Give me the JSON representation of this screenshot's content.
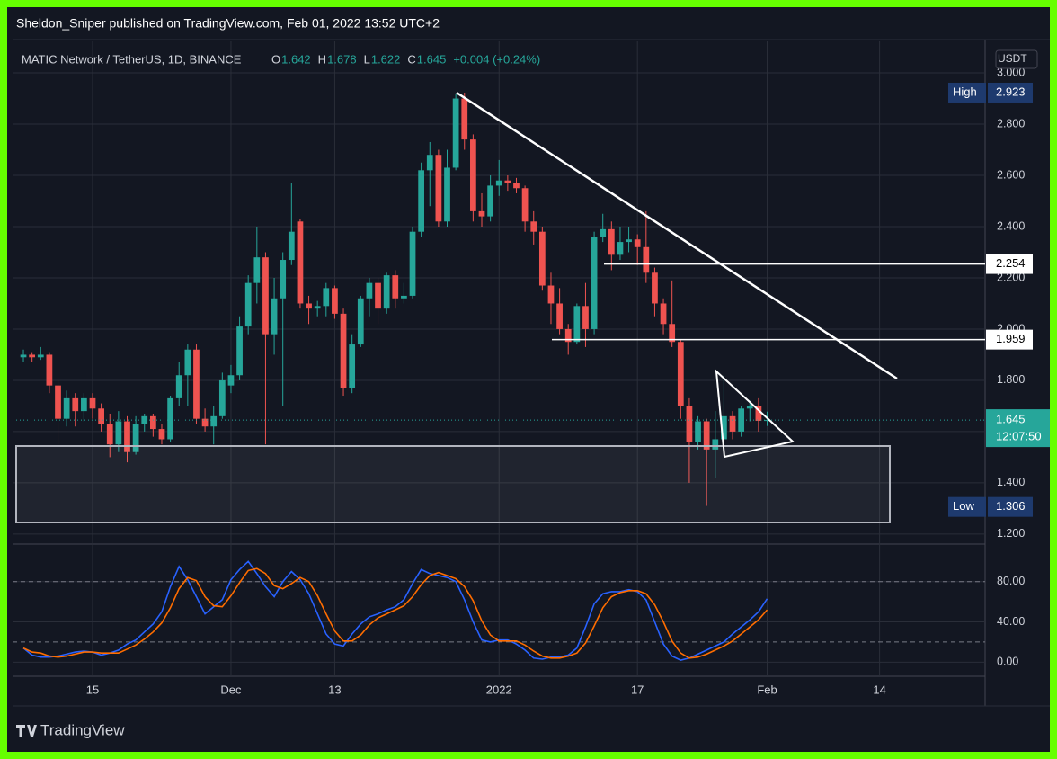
{
  "header": {
    "publisher": "Sheldon_Sniper published on TradingView.com, Feb 01, 2022 13:52 UTC+2"
  },
  "chart_data": {
    "type": "candlestick",
    "symbol": "MATIC Network / TetherUS, 1D, BINANCE",
    "legend": [
      {
        "label": "O",
        "value": 1.642
      },
      {
        "label": "H",
        "value": 1.678
      },
      {
        "label": "L",
        "value": 1.622
      },
      {
        "label": "C",
        "value": 1.645
      }
    ],
    "change": "+0.004 (+0.24%)",
    "currency": "USDT",
    "up_color": "#26a69a",
    "down_color": "#ef5350",
    "open": [
      1.89,
      1.9,
      1.89,
      1.9,
      1.78,
      1.65,
      1.73,
      1.68,
      1.73,
      1.69,
      1.63,
      1.55,
      1.64,
      1.52,
      1.63,
      1.66,
      1.61,
      1.57,
      1.73,
      1.82,
      1.92,
      1.65,
      1.62,
      1.66,
      1.78,
      1.82,
      2.01,
      2.18,
      2.28,
      1.98,
      2.12,
      2.27,
      2.42,
      2.1,
      2.08,
      2.09,
      2.16,
      2.06,
      1.77,
      1.94,
      2.12,
      2.18,
      2.08,
      2.21,
      2.12,
      2.13,
      2.38,
      2.62,
      2.68,
      2.42,
      2.63,
      2.9,
      2.74,
      2.46,
      2.44,
      2.56,
      2.58,
      2.57,
      2.55,
      2.42,
      2.38,
      2.17,
      2.1,
      2.0,
      1.95,
      2.09,
      2.0,
      2.36,
      2.39,
      2.29,
      2.34,
      2.35,
      2.32,
      2.22,
      2.1,
      2.02,
      1.95,
      1.7,
      1.56,
      1.64,
      1.53,
      1.57,
      1.66,
      1.6,
      1.69,
      1.7,
      1.642
    ],
    "high": [
      1.92,
      1.91,
      1.93,
      1.91,
      1.8,
      1.76,
      1.75,
      1.75,
      1.75,
      1.71,
      1.67,
      1.68,
      1.66,
      1.66,
      1.67,
      1.67,
      1.63,
      1.74,
      1.87,
      1.94,
      1.94,
      1.69,
      1.7,
      1.83,
      1.86,
      2.05,
      2.21,
      2.4,
      2.3,
      2.2,
      2.3,
      2.57,
      2.43,
      2.13,
      2.11,
      2.18,
      2.17,
      2.08,
      1.98,
      2.13,
      2.2,
      2.2,
      2.22,
      2.23,
      2.18,
      2.4,
      2.65,
      2.73,
      2.7,
      2.7,
      2.92,
      2.923,
      2.76,
      2.53,
      2.6,
      2.66,
      2.6,
      2.59,
      2.56,
      2.46,
      2.4,
      2.22,
      2.16,
      2.02,
      2.1,
      2.18,
      2.38,
      2.45,
      2.42,
      2.4,
      2.4,
      2.37,
      2.46,
      2.24,
      2.12,
      2.19,
      1.96,
      1.73,
      1.66,
      1.65,
      1.68,
      1.82,
      1.68,
      1.7,
      1.72,
      1.73,
      1.678
    ],
    "low": [
      1.87,
      1.87,
      1.88,
      1.75,
      1.55,
      1.62,
      1.62,
      1.64,
      1.65,
      1.6,
      1.5,
      1.52,
      1.48,
      1.51,
      1.6,
      1.58,
      1.55,
      1.56,
      1.7,
      1.7,
      1.63,
      1.6,
      1.55,
      1.65,
      1.75,
      1.8,
      1.98,
      2.1,
      1.55,
      1.9,
      1.7,
      2.25,
      2.08,
      2.02,
      2.05,
      2.05,
      2.04,
      1.74,
      1.75,
      1.93,
      2.05,
      2.02,
      2.06,
      2.08,
      2.1,
      2.12,
      2.36,
      2.48,
      2.4,
      2.4,
      2.62,
      2.7,
      2.42,
      2.4,
      2.42,
      2.52,
      2.54,
      2.53,
      2.38,
      2.33,
      2.15,
      2.02,
      1.98,
      1.9,
      1.94,
      1.93,
      1.98,
      2.34,
      2.23,
      2.27,
      2.3,
      2.25,
      2.18,
      2.05,
      1.98,
      1.93,
      1.65,
      1.4,
      1.53,
      1.31,
      1.42,
      1.54,
      1.57,
      1.58,
      1.64,
      1.6,
      1.622
    ],
    "close": [
      1.9,
      1.89,
      1.9,
      1.78,
      1.65,
      1.73,
      1.68,
      1.73,
      1.69,
      1.63,
      1.55,
      1.64,
      1.52,
      1.63,
      1.66,
      1.61,
      1.57,
      1.73,
      1.82,
      1.92,
      1.65,
      1.62,
      1.66,
      1.8,
      1.82,
      2.01,
      2.18,
      2.28,
      1.98,
      2.12,
      2.27,
      2.38,
      2.1,
      2.08,
      2.09,
      2.16,
      2.06,
      1.77,
      1.94,
      2.12,
      2.18,
      2.08,
      2.21,
      2.12,
      2.13,
      2.38,
      2.62,
      2.68,
      2.42,
      2.63,
      2.9,
      2.74,
      2.46,
      2.44,
      2.56,
      2.58,
      2.57,
      2.55,
      2.42,
      2.38,
      2.17,
      2.1,
      2.0,
      1.95,
      2.09,
      2.0,
      2.36,
      2.39,
      2.29,
      2.34,
      2.35,
      2.32,
      2.22,
      2.1,
      2.02,
      1.95,
      1.7,
      1.56,
      1.64,
      1.53,
      1.57,
      1.66,
      1.6,
      1.69,
      1.7,
      1.642,
      1.645
    ],
    "xlim": [
      -1.25,
      111.2
    ],
    "xticks": [
      {
        "value": 8,
        "label": "15"
      },
      {
        "value": 24,
        "label": "Dec"
      },
      {
        "value": 36,
        "label": "13"
      },
      {
        "value": 55,
        "label": "2022"
      },
      {
        "value": 71,
        "label": "17"
      },
      {
        "value": 86,
        "label": "Feb"
      },
      {
        "value": 99,
        "label": "14"
      }
    ],
    "ylim": [
      1.161,
      3.123
    ],
    "yticks": [
      {
        "value": 1.2,
        "label": "1.200"
      },
      {
        "value": 1.4,
        "label": "1.400"
      },
      {
        "value": 1.6,
        "label": "1.600"
      },
      {
        "value": 1.8,
        "label": "1.800"
      },
      {
        "value": 2.0,
        "label": "2.000"
      },
      {
        "value": 2.2,
        "label": "2.200"
      },
      {
        "value": 2.4,
        "label": "2.400"
      },
      {
        "value": 2.6,
        "label": "2.600"
      },
      {
        "value": 2.8,
        "label": "2.800"
      },
      {
        "value": 3.0,
        "label": "3.000"
      }
    ],
    "price_labels": [
      {
        "label": "High",
        "value": 2.923
      },
      {
        "label": "Low",
        "value": 1.306
      }
    ],
    "levels": [
      2.254,
      1.959
    ],
    "last_price": 1.645,
    "countdown": "12:07:50",
    "indicator": {
      "ylim": [
        -14,
        111
      ],
      "yticks": [
        {
          "value": 0,
          "label": "0.00"
        },
        {
          "value": 40,
          "label": "40.00"
        },
        {
          "value": 80,
          "label": "80.00"
        }
      ],
      "bands": [
        80,
        20
      ],
      "series": [
        {
          "color": "#2962ff",
          "values": [
            14,
            7,
            5,
            5,
            6,
            8,
            10,
            11,
            10,
            7,
            9,
            12,
            18,
            22,
            30,
            38,
            50,
            75,
            95,
            82,
            65,
            48,
            55,
            62,
            82,
            92,
            100,
            88,
            75,
            65,
            80,
            90,
            82,
            68,
            48,
            28,
            18,
            16,
            28,
            38,
            45,
            48,
            52,
            55,
            62,
            78,
            92,
            88,
            86,
            84,
            80,
            62,
            40,
            22,
            20,
            22,
            22,
            18,
            12,
            4,
            3,
            5,
            5,
            7,
            14,
            35,
            58,
            68,
            70,
            70,
            72,
            70,
            62,
            40,
            18,
            6,
            2,
            4,
            8,
            12,
            16,
            20,
            28,
            35,
            42,
            50,
            63
          ]
        },
        {
          "color": "#ff6d00",
          "values": [
            14,
            10,
            9,
            6,
            5,
            6,
            8,
            10,
            10,
            9,
            9,
            9,
            13,
            17,
            23,
            30,
            39,
            54,
            73,
            84,
            81,
            65,
            56,
            55,
            66,
            79,
            91,
            93,
            88,
            76,
            73,
            78,
            84,
            80,
            66,
            48,
            31,
            21,
            21,
            27,
            37,
            44,
            48,
            52,
            56,
            65,
            77,
            86,
            89,
            86,
            83,
            75,
            61,
            41,
            27,
            21,
            21,
            21,
            17,
            11,
            6,
            4,
            4,
            6,
            9,
            19,
            36,
            54,
            65,
            69,
            71,
            71,
            68,
            57,
            40,
            21,
            9,
            4,
            5,
            8,
            12,
            16,
            21,
            28,
            35,
            42,
            52
          ]
        }
      ]
    }
  },
  "footer": {
    "brand": "TradingView"
  }
}
